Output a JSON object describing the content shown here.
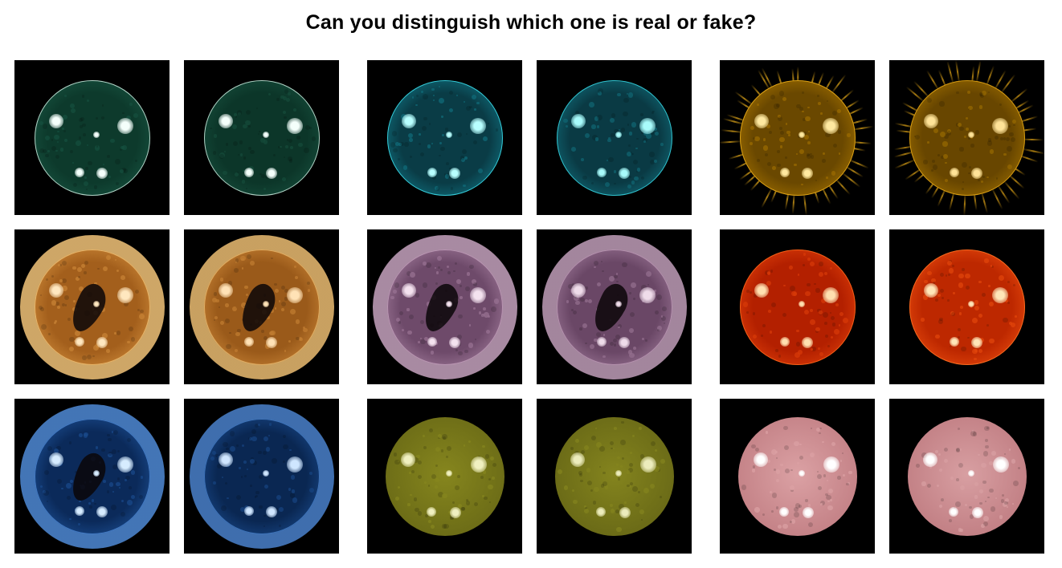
{
  "title": "Can you distinguish which one is real or fake?",
  "panels": [
    {
      "row": 0,
      "col": 0,
      "channel": "green",
      "base": "#0d3a2c",
      "mid": "#16503e",
      "limb": "#d8f5ea",
      "spot": "#f4fffb",
      "corona": "none",
      "hole": false
    },
    {
      "row": 0,
      "col": 1,
      "channel": "green",
      "base": "#0c3629",
      "mid": "#154b3a",
      "limb": "#d4f2e6",
      "spot": "#f4fffb",
      "corona": "none",
      "hole": false
    },
    {
      "row": 0,
      "col": 2,
      "channel": "cyan",
      "base": "#0a3c46",
      "mid": "#0f6c7a",
      "limb": "#3fe6f2",
      "spot": "#b8ffff",
      "corona": "none",
      "hole": false
    },
    {
      "row": 0,
      "col": 3,
      "channel": "cyan",
      "base": "#0a3a44",
      "mid": "#106673",
      "limb": "#3adde9",
      "spot": "#a8fbfb",
      "corona": "none",
      "hole": false
    },
    {
      "row": 0,
      "col": 4,
      "channel": "gold",
      "base": "#6a4800",
      "mid": "#9c6c00",
      "limb": "#f0b21a",
      "spot": "#ffe9a0",
      "corona": "rays",
      "hole": false
    },
    {
      "row": 0,
      "col": 5,
      "channel": "gold",
      "base": "#684600",
      "mid": "#976900",
      "limb": "#e8aa16",
      "spot": "#ffe398",
      "corona": "rays",
      "hole": false
    },
    {
      "row": 1,
      "col": 0,
      "channel": "bronze",
      "base": "#a35f1c",
      "mid": "#c98536",
      "limb": "#f2c479",
      "spot": "#ffe7bf",
      "corona": "halo",
      "hole": true
    },
    {
      "row": 1,
      "col": 1,
      "channel": "bronze",
      "base": "#9a5a1a",
      "mid": "#c27e32",
      "limb": "#ecbd72",
      "spot": "#ffe2b6",
      "corona": "halo",
      "hole": true
    },
    {
      "row": 1,
      "col": 2,
      "channel": "mauve",
      "base": "#6e4a6a",
      "mid": "#9a7494",
      "limb": "#c6a3be",
      "spot": "#f4e2ef",
      "corona": "halo",
      "hole": true
    },
    {
      "row": 1,
      "col": 3,
      "channel": "mauve",
      "base": "#6a4766",
      "mid": "#957090",
      "limb": "#c09db9",
      "spot": "#efdcea",
      "corona": "halo",
      "hole": true
    },
    {
      "row": 1,
      "col": 4,
      "channel": "red",
      "base": "#b32000",
      "mid": "#d83a08",
      "limb": "#ff6a1c",
      "spot": "#ffe0b0",
      "corona": "none",
      "hole": false
    },
    {
      "row": 1,
      "col": 5,
      "channel": "red",
      "base": "#bd2800",
      "mid": "#e2460c",
      "limb": "#ff7424",
      "spot": "#ffe6b8",
      "corona": "none",
      "hole": false
    },
    {
      "row": 2,
      "col": 0,
      "channel": "blue",
      "base": "#0b2a5a",
      "mid": "#1a4a8c",
      "limb": "#4f8ad6",
      "spot": "#d6ecff",
      "corona": "halo",
      "hole": true
    },
    {
      "row": 2,
      "col": 1,
      "channel": "blue",
      "base": "#0a2752",
      "mid": "#174482",
      "limb": "#4a82cc",
      "spot": "#cfe6ff",
      "corona": "halo",
      "hole": false
    },
    {
      "row": 2,
      "col": 2,
      "channel": "olive",
      "base": "#6a6a16",
      "mid": "#86861e",
      "limb": "#5e5e12",
      "spot": "#f0f0c0",
      "corona": "none",
      "hole": false
    },
    {
      "row": 2,
      "col": 3,
      "channel": "olive",
      "base": "#686816",
      "mid": "#84841e",
      "limb": "#5c5c12",
      "spot": "#ececbc",
      "corona": "none",
      "hole": false
    },
    {
      "row": 2,
      "col": 4,
      "channel": "rose",
      "base": "#c27f84",
      "mid": "#dba1a4",
      "limb": "#a86268",
      "spot": "#ffffff",
      "corona": "none",
      "hole": false
    },
    {
      "row": 2,
      "col": 5,
      "channel": "rose",
      "base": "#c07d82",
      "mid": "#d89fa2",
      "limb": "#a6606a",
      "spot": "#ffffff",
      "corona": "none",
      "hole": false
    }
  ]
}
